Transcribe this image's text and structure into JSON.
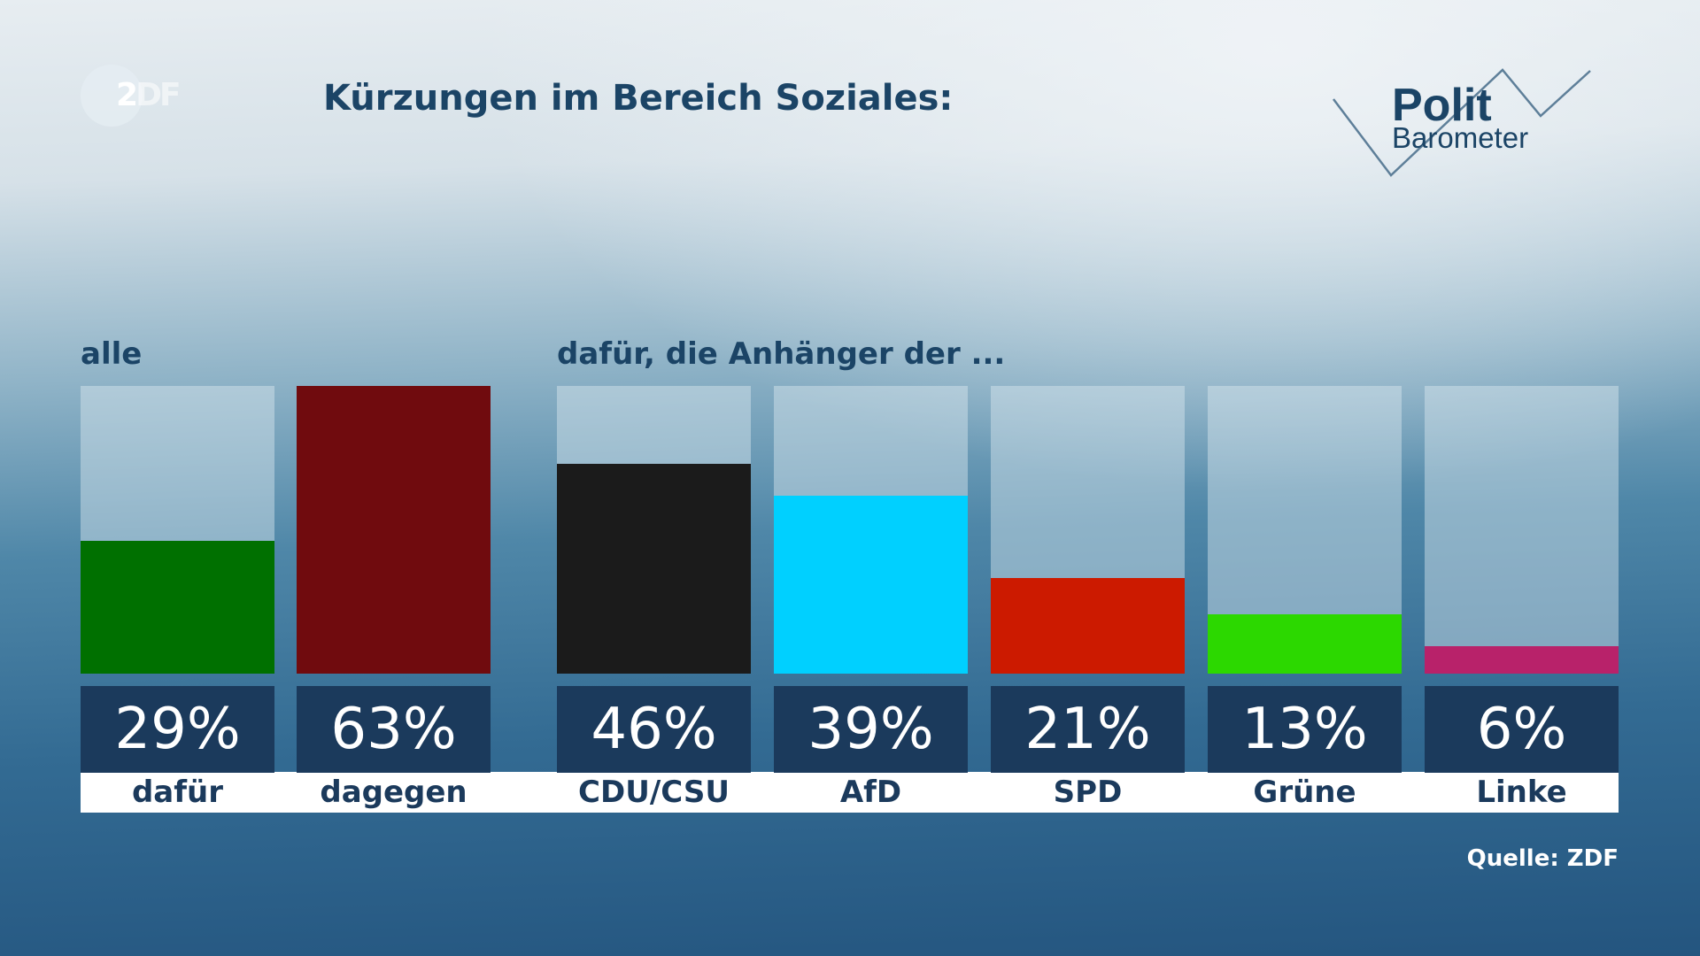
{
  "header": {
    "title": "Kürzungen im Bereich Soziales:",
    "logo": "ZDF",
    "brand_line1": "Polit",
    "brand_line2": "Barometer"
  },
  "source": "Quelle: ZDF",
  "chart_data": {
    "type": "bar",
    "title": "Kürzungen im Bereich Soziales:",
    "groups": [
      {
        "label": "alle",
        "categories": [
          "dafür",
          "dagegen"
        ],
        "values": [
          29,
          63
        ],
        "value_labels": [
          "29%",
          "63%"
        ],
        "colors": [
          "#007000",
          "#700b0e"
        ]
      },
      {
        "label": "dafür, die Anhänger der ...",
        "categories": [
          "CDU/CSU",
          "AfD",
          "SPD",
          "Grüne",
          "Linke"
        ],
        "values": [
          46,
          39,
          21,
          13,
          6
        ],
        "value_labels": [
          "46%",
          "39%",
          "21%",
          "13%",
          "6%"
        ],
        "colors": [
          "#1b1b1b",
          "#00d0ff",
          "#cc1a00",
          "#2cd800",
          "#b8226a"
        ]
      }
    ],
    "unit": "%",
    "ylim": [
      0,
      63
    ],
    "grid": false
  }
}
